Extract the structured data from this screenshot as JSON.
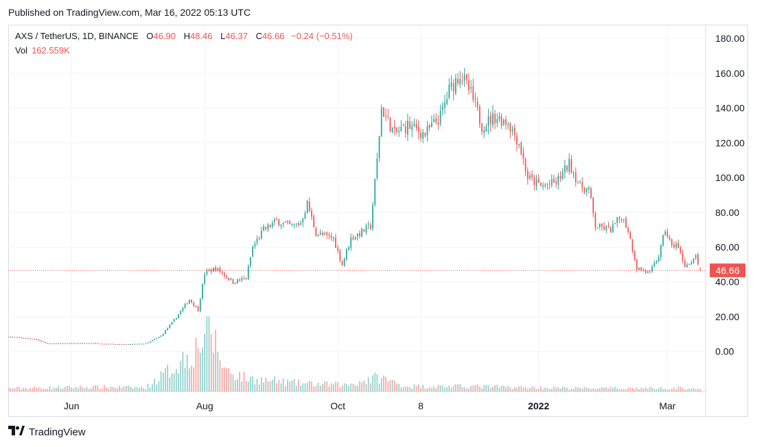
{
  "header": {
    "published": "Published on TradingView.com, Mar 16, 2022 05:13 UTC"
  },
  "legend": {
    "symbol": "AXS / TetherUS, 1D, BINANCE",
    "o_label": "O",
    "o_value": "46.90",
    "h_label": "H",
    "h_value": "48.46",
    "l_label": "L",
    "l_value": "46.37",
    "c_label": "C",
    "c_value": "46.66",
    "change": "−0.24 (−0.51%)",
    "vol_label": "Vol",
    "vol_value": "162.559K"
  },
  "footer": {
    "brand": "TradingView"
  },
  "colors": {
    "up": "#26a69a",
    "down": "#ef5350",
    "last_price_bg": "#ef5350",
    "grid": "#f0f3fa"
  },
  "chart_data": {
    "type": "candlestick",
    "symbol": "AXS / TetherUS",
    "interval": "1D",
    "exchange": "BINANCE",
    "ylim": [
      -8,
      182
    ],
    "y_ticks": [
      "180.00",
      "160.00",
      "140.00",
      "120.00",
      "100.00",
      "80.00",
      "60.00",
      "40.00",
      "20.00",
      "0.00"
    ],
    "y_tick_values": [
      180,
      160,
      140,
      120,
      100,
      80,
      60,
      40,
      20,
      0
    ],
    "x_ticks": [
      "Jun",
      "Aug",
      "Oct",
      "8",
      "2022",
      "Mar"
    ],
    "x_tick_dates": [
      "2021-06-01",
      "2021-08-01",
      "2021-10-01",
      "2021-11-08",
      "2022-01-01",
      "2022-03-01"
    ],
    "start_date": "2021-05-03",
    "end_date": "2022-03-16",
    "last_price": "46.66",
    "last_price_value": 46.66,
    "close_keypoints": [
      [
        "2021-05-03",
        8.5
      ],
      [
        "2021-05-15",
        7.2
      ],
      [
        "2021-05-21",
        4.5
      ],
      [
        "2021-06-10",
        4.8
      ],
      [
        "2021-06-25",
        4.0
      ],
      [
        "2021-07-05",
        4.5
      ],
      [
        "2021-07-12",
        9.0
      ],
      [
        "2021-07-18",
        18.0
      ],
      [
        "2021-07-25",
        30.0
      ],
      [
        "2021-07-29",
        24.0
      ],
      [
        "2021-08-01",
        45.0
      ],
      [
        "2021-08-06",
        48.0
      ],
      [
        "2021-08-14",
        40.0
      ],
      [
        "2021-08-20",
        42.0
      ],
      [
        "2021-08-23",
        60.0
      ],
      [
        "2021-08-28",
        70.0
      ],
      [
        "2021-09-03",
        75.0
      ],
      [
        "2021-09-10",
        72.0
      ],
      [
        "2021-09-14",
        74.0
      ],
      [
        "2021-09-17",
        85.0
      ],
      [
        "2021-09-21",
        68.0
      ],
      [
        "2021-09-29",
        65.0
      ],
      [
        "2021-10-03",
        50.0
      ],
      [
        "2021-10-07",
        65.0
      ],
      [
        "2021-10-16",
        72.0
      ],
      [
        "2021-10-19",
        110.0
      ],
      [
        "2021-10-21",
        140.0
      ],
      [
        "2021-10-27",
        125.0
      ],
      [
        "2021-11-02",
        130.0
      ],
      [
        "2021-11-10",
        125.0
      ],
      [
        "2021-11-17",
        135.0
      ],
      [
        "2021-11-21",
        150.0
      ],
      [
        "2021-11-26",
        160.0
      ],
      [
        "2021-12-01",
        148.0
      ],
      [
        "2021-12-06",
        130.0
      ],
      [
        "2021-12-12",
        135.0
      ],
      [
        "2021-12-18",
        132.0
      ],
      [
        "2021-12-23",
        120.0
      ],
      [
        "2021-12-27",
        100.0
      ],
      [
        "2022-01-02",
        95.0
      ],
      [
        "2022-01-09",
        97.0
      ],
      [
        "2022-01-15",
        108.0
      ],
      [
        "2022-01-20",
        95.0
      ],
      [
        "2022-01-24",
        93.0
      ],
      [
        "2022-01-27",
        72.0
      ],
      [
        "2022-02-03",
        70.0
      ],
      [
        "2022-02-08",
        78.0
      ],
      [
        "2022-02-11",
        70.0
      ],
      [
        "2022-02-15",
        48.0
      ],
      [
        "2022-02-21",
        45.0
      ],
      [
        "2022-02-25",
        55.0
      ],
      [
        "2022-02-28",
        70.0
      ],
      [
        "2022-03-03",
        60.0
      ],
      [
        "2022-03-05",
        62.0
      ],
      [
        "2022-03-09",
        50.0
      ],
      [
        "2022-03-12",
        50.0
      ],
      [
        "2022-03-14",
        55.0
      ],
      [
        "2022-03-16",
        46.66
      ]
    ],
    "volume_keypoints": [
      [
        "2021-05-03",
        0.05
      ],
      [
        "2021-06-15",
        0.07
      ],
      [
        "2021-07-05",
        0.06
      ],
      [
        "2021-07-15",
        0.3
      ],
      [
        "2021-07-28",
        0.65
      ],
      [
        "2021-08-03",
        1.0
      ],
      [
        "2021-08-10",
        0.35
      ],
      [
        "2021-08-20",
        0.2
      ],
      [
        "2021-09-15",
        0.12
      ],
      [
        "2021-10-05",
        0.1
      ],
      [
        "2021-10-20",
        0.22
      ],
      [
        "2021-11-01",
        0.08
      ],
      [
        "2021-12-01",
        0.08
      ],
      [
        "2022-01-15",
        0.05
      ],
      [
        "2022-03-16",
        0.05
      ]
    ],
    "grid": true
  }
}
